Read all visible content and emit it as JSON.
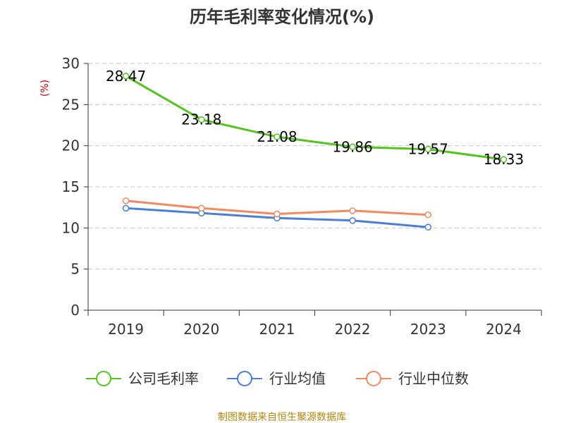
{
  "chart_data": {
    "type": "line",
    "title": "历年毛利率变化情况(%)",
    "ylabel": "(%)",
    "xlabel": "",
    "categories": [
      "2019",
      "2020",
      "2021",
      "2022",
      "2023",
      "2024"
    ],
    "ylim": [
      0,
      30
    ],
    "yticks": [
      0,
      5,
      10,
      15,
      20,
      25,
      30
    ],
    "grid": true,
    "legend_position": "bottom",
    "series": [
      {
        "name": "公司毛利率",
        "color": "#52c41a",
        "values": [
          28.47,
          23.18,
          21.08,
          19.86,
          19.57,
          18.33
        ],
        "labels": [
          "28.47",
          "23.18",
          "21.08",
          "19.86",
          "19.57",
          "18.33"
        ]
      },
      {
        "name": "行业均值",
        "color": "#4a7fd9",
        "values": [
          12.4,
          11.8,
          11.2,
          10.9,
          10.1,
          null
        ]
      },
      {
        "name": "行业中位数",
        "color": "#f4895f",
        "values": [
          13.3,
          12.4,
          11.7,
          12.1,
          11.6,
          null
        ]
      }
    ],
    "source": "制图数据来自恒生聚源数据库"
  }
}
